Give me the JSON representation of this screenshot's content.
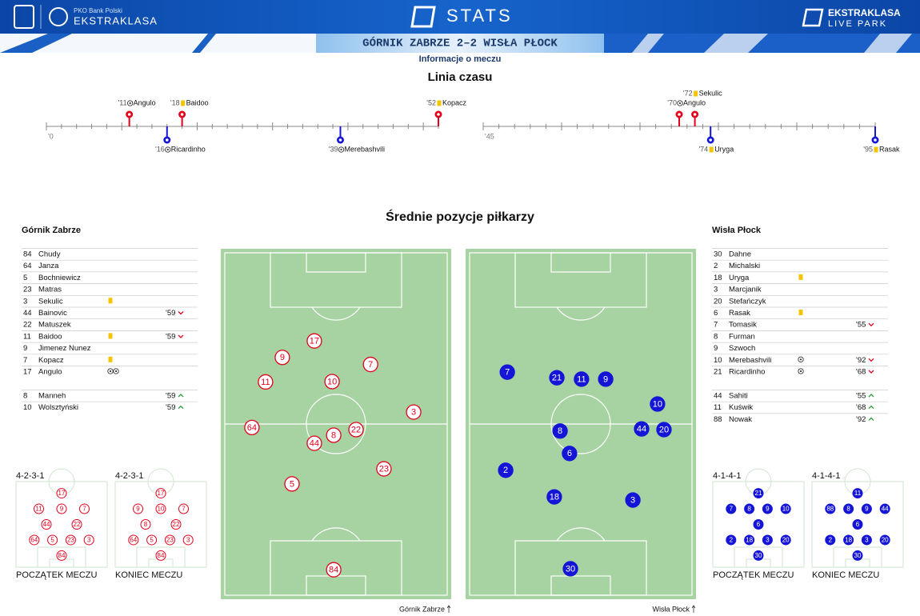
{
  "header": {
    "bank": "PKO Bank Polski",
    "league": "EKSTRAKLASA",
    "section": "STATS",
    "partner_top": "EKSTRAKLASA",
    "partner_bottom": "LIVE PARK"
  },
  "match": {
    "title": "GÓRNIK ZABRZE 2–2 WISŁA PŁOCK",
    "subtitle": "Informacje o meczu"
  },
  "timeline": {
    "title": "Linia czasu",
    "halves": [
      {
        "label": "'0",
        "range": [
          0,
          52
        ],
        "events": [
          {
            "minute": 11,
            "minute_label": "'11",
            "player": "Angulo",
            "kind": "goal",
            "team": "home"
          },
          {
            "minute": 16,
            "minute_label": "'16",
            "player": "Ricardinho",
            "kind": "goal",
            "team": "away"
          },
          {
            "minute": 18,
            "minute_label": "'18",
            "player": "Baidoo",
            "kind": "yellow",
            "team": "home"
          },
          {
            "minute": 39,
            "minute_label": "'39",
            "player": "Merebashvili",
            "kind": "goal",
            "team": "away"
          },
          {
            "minute": 52,
            "minute_label": "'52",
            "player": "Kopacz",
            "kind": "yellow",
            "team": "home"
          }
        ]
      },
      {
        "label": "'45",
        "range": [
          45,
          95
        ],
        "events": [
          {
            "minute": 70,
            "minute_label": "'70",
            "player": "Angulo",
            "kind": "goal",
            "team": "home"
          },
          {
            "minute": 72,
            "minute_label": "'72",
            "player": "Sekulic",
            "kind": "yellow",
            "team": "home"
          },
          {
            "minute": 74,
            "minute_label": "'74",
            "player": "Uryga",
            "kind": "yellow",
            "team": "away"
          },
          {
            "minute": 95,
            "minute_label": "'95",
            "player": "Rasak",
            "kind": "yellow",
            "team": "away"
          }
        ]
      }
    ]
  },
  "positions": {
    "title": "Średnie pozycje piłkarzy",
    "pitches": [
      {
        "team": "Górnik Zabrze",
        "color": "#e3001b",
        "fill": "#ffffff",
        "text_color": "#e3001b",
        "players": [
          {
            "number": "17",
            "x": 40.6,
            "y": 26.3
          },
          {
            "number": "9",
            "x": 26.7,
            "y": 31
          },
          {
            "number": "7",
            "x": 65,
            "y": 33
          },
          {
            "number": "11",
            "x": 19.4,
            "y": 38
          },
          {
            "number": "10",
            "x": 48.3,
            "y": 37.9
          },
          {
            "number": "3",
            "x": 83.7,
            "y": 46.6
          },
          {
            "number": "64",
            "x": 13.5,
            "y": 51
          },
          {
            "number": "22",
            "x": 58.7,
            "y": 51.6
          },
          {
            "number": "8",
            "x": 49,
            "y": 53.2
          },
          {
            "number": "44",
            "x": 40.6,
            "y": 55.5
          },
          {
            "number": "23",
            "x": 70.8,
            "y": 62.8
          },
          {
            "number": "5",
            "x": 30.9,
            "y": 67.1
          },
          {
            "number": "84",
            "x": 49,
            "y": 91.6
          }
        ]
      },
      {
        "team": "Wisła Płock",
        "color": "#1515d8",
        "fill": "#1515d8",
        "text_color": "#ffffff",
        "players": [
          {
            "number": "7",
            "x": 18.1,
            "y": 35.2
          },
          {
            "number": "21",
            "x": 39.6,
            "y": 36.8
          },
          {
            "number": "11",
            "x": 50.3,
            "y": 37.2
          },
          {
            "number": "9",
            "x": 60.8,
            "y": 37.2
          },
          {
            "number": "10",
            "x": 83.3,
            "y": 44.3
          },
          {
            "number": "44",
            "x": 76.4,
            "y": 51.4
          },
          {
            "number": "20",
            "x": 86.1,
            "y": 51.6
          },
          {
            "number": "8",
            "x": 41,
            "y": 52
          },
          {
            "number": "6",
            "x": 45.1,
            "y": 58.4
          },
          {
            "number": "2",
            "x": 17.4,
            "y": 63.2
          },
          {
            "number": "18",
            "x": 38.5,
            "y": 70.8
          },
          {
            "number": "3",
            "x": 72.6,
            "y": 71.7
          },
          {
            "number": "30",
            "x": 45.5,
            "y": 91.3
          }
        ]
      }
    ]
  },
  "lineups": [
    {
      "team": "Górnik Zabrze",
      "color": "#e3001b",
      "starters": [
        {
          "number": "84",
          "name": "Chudy"
        },
        {
          "number": "64",
          "name": "Janza"
        },
        {
          "number": "5",
          "name": "Bochniewicz"
        },
        {
          "number": "23",
          "name": "Matras"
        },
        {
          "number": "3",
          "name": "Sekulic",
          "icons": [
            "yellow"
          ]
        },
        {
          "number": "44",
          "name": "Bainovic",
          "sub": {
            "minute": "'59",
            "dir": "out"
          }
        },
        {
          "number": "22",
          "name": "Matuszek"
        },
        {
          "number": "11",
          "name": "Baidoo",
          "icons": [
            "yellow"
          ],
          "sub": {
            "minute": "'59",
            "dir": "out"
          }
        },
        {
          "number": "9",
          "name": "Jimenez Nunez"
        },
        {
          "number": "7",
          "name": "Kopacz",
          "icons": [
            "yellow"
          ]
        },
        {
          "number": "17",
          "name": "Angulo",
          "icons": [
            "goal",
            "goal"
          ]
        }
      ],
      "bench": [
        {
          "number": "8",
          "name": "Manneh",
          "sub": {
            "minute": "'59",
            "dir": "in"
          }
        },
        {
          "number": "10",
          "name": "Wolsztyński",
          "sub": {
            "minute": "'59",
            "dir": "in"
          }
        }
      ],
      "formations": [
        {
          "shape": "4-2-3-1",
          "caption": "POCZĄTEK MECZU",
          "rows": [
            [
              "17"
            ],
            [
              "11",
              "9",
              "7"
            ],
            [
              "44",
              "22"
            ],
            [
              "64",
              "5",
              "23",
              "3"
            ],
            [
              "84"
            ]
          ]
        },
        {
          "shape": "4-2-3-1",
          "caption": "KONIEC MECZU",
          "rows": [
            [
              "17"
            ],
            [
              "9",
              "10",
              "7"
            ],
            [
              "8",
              "22"
            ],
            [
              "64",
              "5",
              "23",
              "3"
            ],
            [
              "84"
            ]
          ]
        }
      ]
    },
    {
      "team": "Wisła Płock",
      "color": "#1515d8",
      "starters": [
        {
          "number": "30",
          "name": "Dahne"
        },
        {
          "number": "2",
          "name": "Michalski"
        },
        {
          "number": "18",
          "name": "Uryga",
          "icons": [
            "yellow"
          ]
        },
        {
          "number": "3",
          "name": "Marcjanik"
        },
        {
          "number": "20",
          "name": "Stefańczyk"
        },
        {
          "number": "6",
          "name": "Rasak",
          "icons": [
            "yellow"
          ]
        },
        {
          "number": "7",
          "name": "Tomasik",
          "sub": {
            "minute": "'55",
            "dir": "out"
          }
        },
        {
          "number": "8",
          "name": "Furman"
        },
        {
          "number": "9",
          "name": "Szwoch"
        },
        {
          "number": "10",
          "name": "Merebashvili",
          "icons": [
            "goal"
          ],
          "sub": {
            "minute": "'92",
            "dir": "out"
          }
        },
        {
          "number": "21",
          "name": "Ricardinho",
          "icons": [
            "goal"
          ],
          "sub": {
            "minute": "'68",
            "dir": "out"
          }
        }
      ],
      "bench": [
        {
          "number": "44",
          "name": "Sahiti",
          "sub": {
            "minute": "'55",
            "dir": "in"
          }
        },
        {
          "number": "11",
          "name": "Kuświk",
          "sub": {
            "minute": "'68",
            "dir": "in"
          }
        },
        {
          "number": "88",
          "name": "Nowak",
          "sub": {
            "minute": "'92",
            "dir": "in"
          }
        }
      ],
      "formations": [
        {
          "shape": "4-1-4-1",
          "caption": "POCZĄTEK MECZU",
          "rows": [
            [
              "21"
            ],
            [
              "7",
              "8",
              "9",
              "10"
            ],
            [
              "6"
            ],
            [
              "2",
              "18",
              "3",
              "20"
            ],
            [
              "30"
            ]
          ]
        },
        {
          "shape": "4-1-4-1",
          "caption": "KONIEC MECZU",
          "rows": [
            [
              "11"
            ],
            [
              "88",
              "8",
              "9",
              "44"
            ],
            [
              "6"
            ],
            [
              "2",
              "18",
              "3",
              "20"
            ],
            [
              "30"
            ]
          ]
        }
      ]
    }
  ]
}
